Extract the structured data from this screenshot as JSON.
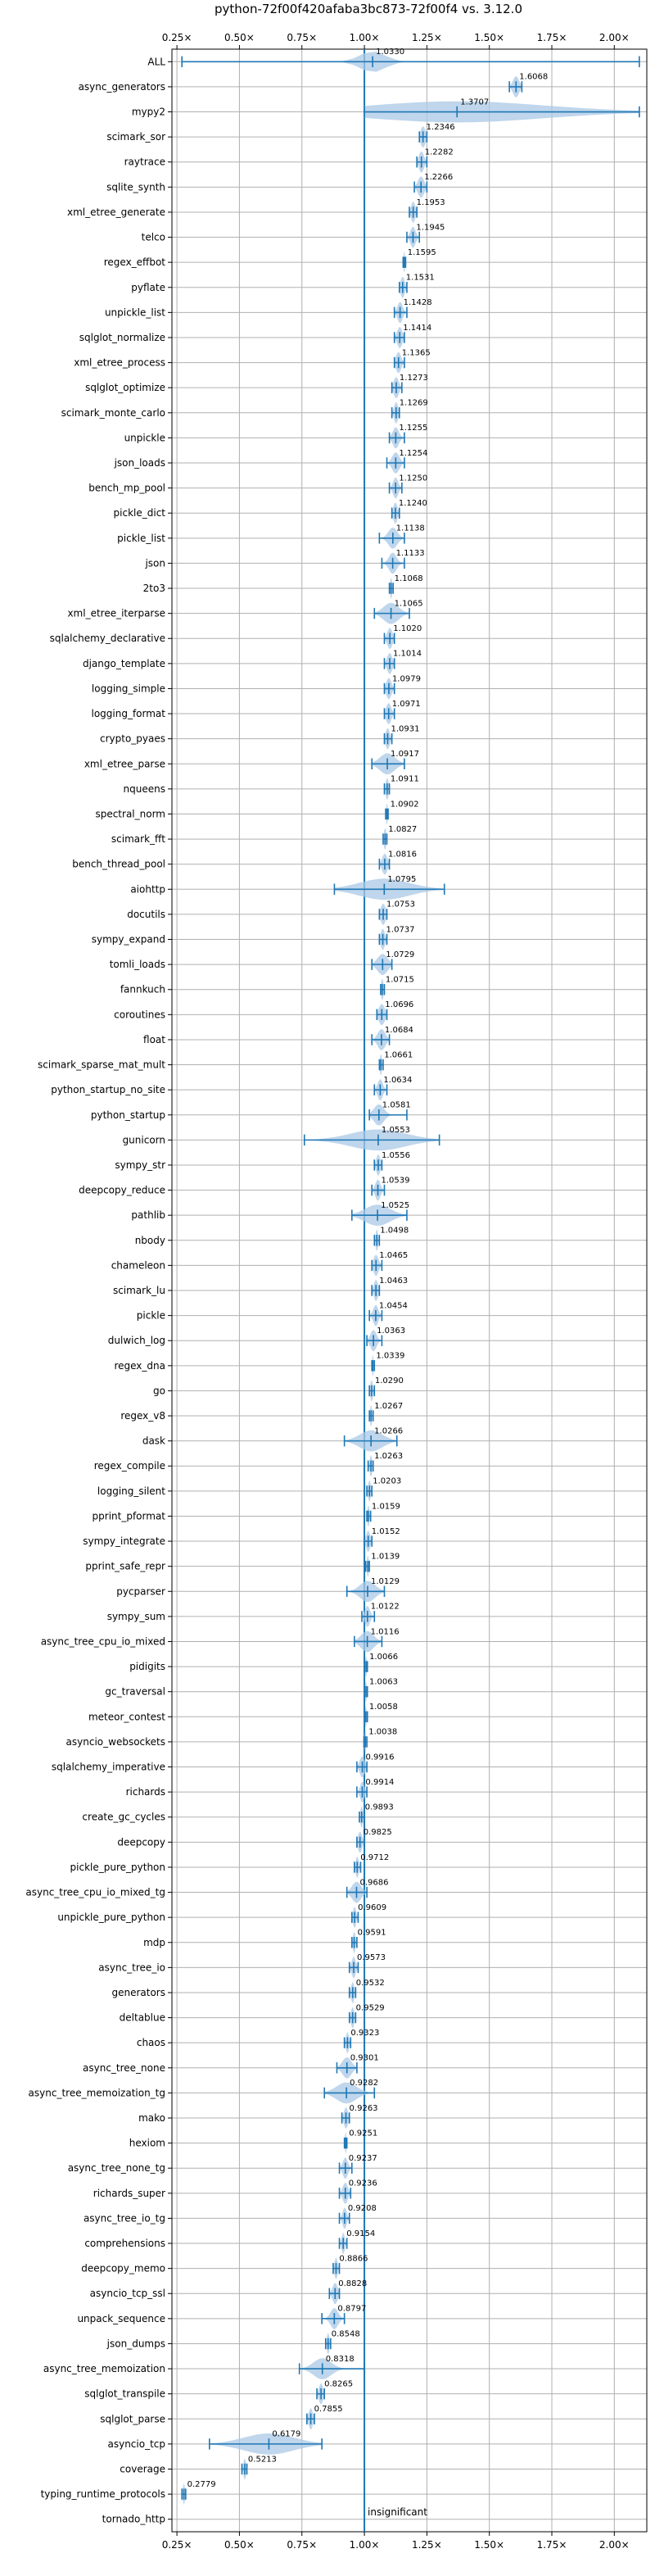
{
  "chart_data": {
    "type": "violin",
    "title": "python-72f00f420afaba3bc873-72f00f4 vs. 3.12.0",
    "xlabel": "",
    "ylabel": "",
    "xlim": [
      0.23,
      2.13
    ],
    "x_ticks": [
      0.25,
      0.5,
      0.75,
      1.0,
      1.25,
      1.5,
      1.75,
      2.0
    ],
    "x_tick_labels": [
      "0.25×",
      "0.50×",
      "0.75×",
      "1.00×",
      "1.25×",
      "1.50×",
      "1.75×",
      "2.00×"
    ],
    "grid": true,
    "reference_line": 1.0,
    "annotation": "insignificant",
    "color": "#1f77b4",
    "fill_color": "#a9c8e6",
    "benchmarks": [
      {
        "name": "ALL",
        "value": 1.033,
        "label": "1.0330",
        "min": 0.27,
        "max": 2.1,
        "spread": 0.05
      },
      {
        "name": "async_generators",
        "value": 1.6068,
        "label": "1.6068",
        "min": 1.58,
        "max": 1.63,
        "spread": 0.012
      },
      {
        "name": "mypy2",
        "value": 1.3707,
        "label": "1.3707",
        "min": 1.0,
        "max": 2.1,
        "spread": 0.35
      },
      {
        "name": "scimark_sor",
        "value": 1.2346,
        "label": "1.2346",
        "min": 1.22,
        "max": 1.25,
        "spread": 0.01
      },
      {
        "name": "raytrace",
        "value": 1.2282,
        "label": "1.2282",
        "min": 1.21,
        "max": 1.25,
        "spread": 0.01
      },
      {
        "name": "sqlite_synth",
        "value": 1.2266,
        "label": "1.2266",
        "min": 1.2,
        "max": 1.25,
        "spread": 0.012
      },
      {
        "name": "xml_etree_generate",
        "value": 1.1953,
        "label": "1.1953",
        "min": 1.18,
        "max": 1.21,
        "spread": 0.008
      },
      {
        "name": "telco",
        "value": 1.1945,
        "label": "1.1945",
        "min": 1.17,
        "max": 1.22,
        "spread": 0.01
      },
      {
        "name": "regex_effbot",
        "value": 1.1595,
        "label": "1.1595",
        "min": 1.155,
        "max": 1.165,
        "spread": 0.003
      },
      {
        "name": "pyflate",
        "value": 1.1531,
        "label": "1.1531",
        "min": 1.14,
        "max": 1.17,
        "spread": 0.008
      },
      {
        "name": "unpickle_list",
        "value": 1.1428,
        "label": "1.1428",
        "min": 1.12,
        "max": 1.17,
        "spread": 0.01
      },
      {
        "name": "sqlglot_normalize",
        "value": 1.1414,
        "label": "1.1414",
        "min": 1.12,
        "max": 1.16,
        "spread": 0.01
      },
      {
        "name": "xml_etree_process",
        "value": 1.1365,
        "label": "1.1365",
        "min": 1.12,
        "max": 1.16,
        "spread": 0.01
      },
      {
        "name": "sqlglot_optimize",
        "value": 1.1273,
        "label": "1.1273",
        "min": 1.11,
        "max": 1.15,
        "spread": 0.01
      },
      {
        "name": "scimark_monte_carlo",
        "value": 1.1269,
        "label": "1.1269",
        "min": 1.11,
        "max": 1.14,
        "spread": 0.008
      },
      {
        "name": "unpickle",
        "value": 1.1255,
        "label": "1.1255",
        "min": 1.1,
        "max": 1.16,
        "spread": 0.012
      },
      {
        "name": "json_loads",
        "value": 1.1254,
        "label": "1.1254",
        "min": 1.09,
        "max": 1.16,
        "spread": 0.014
      },
      {
        "name": "bench_mp_pool",
        "value": 1.125,
        "label": "1.1250",
        "min": 1.1,
        "max": 1.15,
        "spread": 0.01
      },
      {
        "name": "pickle_dict",
        "value": 1.124,
        "label": "1.1240",
        "min": 1.11,
        "max": 1.14,
        "spread": 0.008
      },
      {
        "name": "pickle_list",
        "value": 1.1138,
        "label": "1.1138",
        "min": 1.06,
        "max": 1.16,
        "spread": 0.018
      },
      {
        "name": "json",
        "value": 1.1133,
        "label": "1.1133",
        "min": 1.07,
        "max": 1.16,
        "spread": 0.015
      },
      {
        "name": "2to3",
        "value": 1.1068,
        "label": "1.1068",
        "min": 1.1,
        "max": 1.115,
        "spread": 0.004
      },
      {
        "name": "xml_etree_iterparse",
        "value": 1.1065,
        "label": "1.1065",
        "min": 1.04,
        "max": 1.18,
        "spread": 0.03
      },
      {
        "name": "sqlalchemy_declarative",
        "value": 1.102,
        "label": "1.1020",
        "min": 1.08,
        "max": 1.12,
        "spread": 0.01
      },
      {
        "name": "django_template",
        "value": 1.1014,
        "label": "1.1014",
        "min": 1.08,
        "max": 1.12,
        "spread": 0.01
      },
      {
        "name": "logging_simple",
        "value": 1.0979,
        "label": "1.0979",
        "min": 1.08,
        "max": 1.12,
        "spread": 0.01
      },
      {
        "name": "logging_format",
        "value": 1.0971,
        "label": "1.0971",
        "min": 1.08,
        "max": 1.12,
        "spread": 0.01
      },
      {
        "name": "crypto_pyaes",
        "value": 1.0931,
        "label": "1.0931",
        "min": 1.08,
        "max": 1.11,
        "spread": 0.008
      },
      {
        "name": "xml_etree_parse",
        "value": 1.0917,
        "label": "1.0917",
        "min": 1.03,
        "max": 1.16,
        "spread": 0.03
      },
      {
        "name": "nqueens",
        "value": 1.0911,
        "label": "1.0911",
        "min": 1.08,
        "max": 1.1,
        "spread": 0.006
      },
      {
        "name": "spectral_norm",
        "value": 1.0902,
        "label": "1.0902",
        "min": 1.085,
        "max": 1.095,
        "spread": 0.003
      },
      {
        "name": "scimark_fft",
        "value": 1.0827,
        "label": "1.0827",
        "min": 1.075,
        "max": 1.09,
        "spread": 0.005
      },
      {
        "name": "bench_thread_pool",
        "value": 1.0816,
        "label": "1.0816",
        "min": 1.06,
        "max": 1.1,
        "spread": 0.01
      },
      {
        "name": "aiohttp",
        "value": 1.0795,
        "label": "1.0795",
        "min": 0.88,
        "max": 1.32,
        "spread": 0.1
      },
      {
        "name": "docutils",
        "value": 1.0753,
        "label": "1.0753",
        "min": 1.06,
        "max": 1.09,
        "spread": 0.01
      },
      {
        "name": "sympy_expand",
        "value": 1.0737,
        "label": "1.0737",
        "min": 1.06,
        "max": 1.09,
        "spread": 0.008
      },
      {
        "name": "tomli_loads",
        "value": 1.0729,
        "label": "1.0729",
        "min": 1.03,
        "max": 1.11,
        "spread": 0.02
      },
      {
        "name": "fannkuch",
        "value": 1.0715,
        "label": "1.0715",
        "min": 1.065,
        "max": 1.08,
        "spread": 0.005
      },
      {
        "name": "coroutines",
        "value": 1.0696,
        "label": "1.0696",
        "min": 1.05,
        "max": 1.09,
        "spread": 0.012
      },
      {
        "name": "float",
        "value": 1.0684,
        "label": "1.0684",
        "min": 1.03,
        "max": 1.1,
        "spread": 0.015
      },
      {
        "name": "scimark_sparse_mat_mult",
        "value": 1.0661,
        "label": "1.0661",
        "min": 1.06,
        "max": 1.075,
        "spread": 0.004
      },
      {
        "name": "python_startup_no_site",
        "value": 1.0634,
        "label": "1.0634",
        "min": 1.04,
        "max": 1.09,
        "spread": 0.01
      },
      {
        "name": "python_startup",
        "value": 1.0581,
        "label": "1.0581",
        "min": 1.02,
        "max": 1.17,
        "spread": 0.02
      },
      {
        "name": "gunicorn",
        "value": 1.0553,
        "label": "1.0553",
        "min": 0.76,
        "max": 1.3,
        "spread": 0.11
      },
      {
        "name": "sympy_str",
        "value": 1.0556,
        "label": "1.0556",
        "min": 1.04,
        "max": 1.07,
        "spread": 0.008
      },
      {
        "name": "deepcopy_reduce",
        "value": 1.0539,
        "label": "1.0539",
        "min": 1.03,
        "max": 1.08,
        "spread": 0.01
      },
      {
        "name": "pathlib",
        "value": 1.0525,
        "label": "1.0525",
        "min": 0.95,
        "max": 1.17,
        "spread": 0.05
      },
      {
        "name": "nbody",
        "value": 1.0498,
        "label": "1.0498",
        "min": 1.04,
        "max": 1.06,
        "spread": 0.005
      },
      {
        "name": "chameleon",
        "value": 1.0465,
        "label": "1.0465",
        "min": 1.03,
        "max": 1.07,
        "spread": 0.01
      },
      {
        "name": "scimark_lu",
        "value": 1.0463,
        "label": "1.0463",
        "min": 1.03,
        "max": 1.06,
        "spread": 0.008
      },
      {
        "name": "pickle",
        "value": 1.0454,
        "label": "1.0454",
        "min": 1.02,
        "max": 1.07,
        "spread": 0.01
      },
      {
        "name": "dulwich_log",
        "value": 1.0363,
        "label": "1.0363",
        "min": 1.01,
        "max": 1.07,
        "spread": 0.012
      },
      {
        "name": "regex_dna",
        "value": 1.0339,
        "label": "1.0339",
        "min": 1.03,
        "max": 1.04,
        "spread": 0.003
      },
      {
        "name": "go",
        "value": 1.029,
        "label": "1.0290",
        "min": 1.02,
        "max": 1.04,
        "spread": 0.005
      },
      {
        "name": "regex_v8",
        "value": 1.0267,
        "label": "1.0267",
        "min": 1.02,
        "max": 1.035,
        "spread": 0.004
      },
      {
        "name": "dask",
        "value": 1.0266,
        "label": "1.0266",
        "min": 0.92,
        "max": 1.13,
        "spread": 0.045
      },
      {
        "name": "regex_compile",
        "value": 1.0263,
        "label": "1.0263",
        "min": 1.015,
        "max": 1.035,
        "spread": 0.005
      },
      {
        "name": "logging_silent",
        "value": 1.0203,
        "label": "1.0203",
        "min": 1.01,
        "max": 1.03,
        "spread": 0.005
      },
      {
        "name": "pprint_pformat",
        "value": 1.0159,
        "label": "1.0159",
        "min": 1.01,
        "max": 1.025,
        "spread": 0.004
      },
      {
        "name": "sympy_integrate",
        "value": 1.0152,
        "label": "1.0152",
        "min": 1.0,
        "max": 1.03,
        "spread": 0.008
      },
      {
        "name": "pprint_safe_repr",
        "value": 1.0139,
        "label": "1.0139",
        "min": 1.005,
        "max": 1.02,
        "spread": 0.004
      },
      {
        "name": "pycparser",
        "value": 1.0129,
        "label": "1.0129",
        "min": 0.93,
        "max": 1.08,
        "spread": 0.03
      },
      {
        "name": "sympy_sum",
        "value": 1.0122,
        "label": "1.0122",
        "min": 0.99,
        "max": 1.04,
        "spread": 0.01
      },
      {
        "name": "async_tree_cpu_io_mixed",
        "value": 1.0116,
        "label": "1.0116",
        "min": 0.96,
        "max": 1.07,
        "spread": 0.025
      },
      {
        "name": "pidigits",
        "value": 1.0066,
        "label": "1.0066",
        "min": 1.0,
        "max": 1.012,
        "spread": 0.003
      },
      {
        "name": "gc_traversal",
        "value": 1.0063,
        "label": "1.0063",
        "min": 1.0,
        "max": 1.012,
        "spread": 0.003
      },
      {
        "name": "meteor_contest",
        "value": 1.0058,
        "label": "1.0058",
        "min": 1.0,
        "max": 1.012,
        "spread": 0.003
      },
      {
        "name": "asyncio_websockets",
        "value": 1.0038,
        "label": "1.0038",
        "min": 0.998,
        "max": 1.01,
        "spread": 0.003
      },
      {
        "name": "sqlalchemy_imperative",
        "value": 0.9916,
        "label": "0.9916",
        "min": 0.97,
        "max": 1.01,
        "spread": 0.01
      },
      {
        "name": "richards",
        "value": 0.9914,
        "label": "0.9914",
        "min": 0.97,
        "max": 1.01,
        "spread": 0.008
      },
      {
        "name": "create_gc_cycles",
        "value": 0.9893,
        "label": "0.9893",
        "min": 0.98,
        "max": 1.0,
        "spread": 0.005
      },
      {
        "name": "deepcopy",
        "value": 0.9825,
        "label": "0.9825",
        "min": 0.97,
        "max": 1.0,
        "spread": 0.008
      },
      {
        "name": "pickle_pure_python",
        "value": 0.9712,
        "label": "0.9712",
        "min": 0.96,
        "max": 0.985,
        "spread": 0.006
      },
      {
        "name": "async_tree_cpu_io_mixed_tg",
        "value": 0.9686,
        "label": "0.9686",
        "min": 0.93,
        "max": 1.01,
        "spread": 0.018
      },
      {
        "name": "unpickle_pure_python",
        "value": 0.9609,
        "label": "0.9609",
        "min": 0.95,
        "max": 0.975,
        "spread": 0.006
      },
      {
        "name": "mdp",
        "value": 0.9591,
        "label": "0.9591",
        "min": 0.95,
        "max": 0.97,
        "spread": 0.005
      },
      {
        "name": "async_tree_io",
        "value": 0.9573,
        "label": "0.9573",
        "min": 0.94,
        "max": 0.975,
        "spread": 0.008
      },
      {
        "name": "generators",
        "value": 0.9532,
        "label": "0.9532",
        "min": 0.94,
        "max": 0.965,
        "spread": 0.006
      },
      {
        "name": "deltablue",
        "value": 0.9529,
        "label": "0.9529",
        "min": 0.94,
        "max": 0.965,
        "spread": 0.006
      },
      {
        "name": "chaos",
        "value": 0.9323,
        "label": "0.9323",
        "min": 0.92,
        "max": 0.945,
        "spread": 0.006
      },
      {
        "name": "async_tree_none",
        "value": 0.9301,
        "label": "0.9301",
        "min": 0.89,
        "max": 0.97,
        "spread": 0.018
      },
      {
        "name": "async_tree_memoization_tg",
        "value": 0.9282,
        "label": "0.9282",
        "min": 0.84,
        "max": 1.04,
        "spread": 0.04
      },
      {
        "name": "mako",
        "value": 0.9263,
        "label": "0.9263",
        "min": 0.91,
        "max": 0.94,
        "spread": 0.008
      },
      {
        "name": "hexiom",
        "value": 0.9251,
        "label": "0.9251",
        "min": 0.92,
        "max": 0.93,
        "spread": 0.003
      },
      {
        "name": "async_tree_none_tg",
        "value": 0.9237,
        "label": "0.9237",
        "min": 0.9,
        "max": 0.95,
        "spread": 0.01
      },
      {
        "name": "richards_super",
        "value": 0.9236,
        "label": "0.9236",
        "min": 0.9,
        "max": 0.945,
        "spread": 0.01
      },
      {
        "name": "async_tree_io_tg",
        "value": 0.9208,
        "label": "0.9208",
        "min": 0.9,
        "max": 0.94,
        "spread": 0.008
      },
      {
        "name": "comprehensions",
        "value": 0.9154,
        "label": "0.9154",
        "min": 0.9,
        "max": 0.93,
        "spread": 0.006
      },
      {
        "name": "deepcopy_memo",
        "value": 0.8866,
        "label": "0.8866",
        "min": 0.875,
        "max": 0.9,
        "spread": 0.006
      },
      {
        "name": "asyncio_tcp_ssl",
        "value": 0.8828,
        "label": "0.8828",
        "min": 0.86,
        "max": 0.9,
        "spread": 0.01
      },
      {
        "name": "unpack_sequence",
        "value": 0.8797,
        "label": "0.8797",
        "min": 0.83,
        "max": 0.92,
        "spread": 0.015
      },
      {
        "name": "json_dumps",
        "value": 0.8548,
        "label": "0.8548",
        "min": 0.845,
        "max": 0.865,
        "spread": 0.005
      },
      {
        "name": "async_tree_memoization",
        "value": 0.8318,
        "label": "0.8318",
        "min": 0.74,
        "max": 1.0,
        "spread": 0.035
      },
      {
        "name": "sqlglot_transpile",
        "value": 0.8265,
        "label": "0.8265",
        "min": 0.81,
        "max": 0.84,
        "spread": 0.008
      },
      {
        "name": "sqlglot_parse",
        "value": 0.7855,
        "label": "0.7855",
        "min": 0.77,
        "max": 0.8,
        "spread": 0.008
      },
      {
        "name": "asyncio_tcp",
        "value": 0.6179,
        "label": "0.6179",
        "min": 0.38,
        "max": 0.83,
        "spread": 0.1
      },
      {
        "name": "coverage",
        "value": 0.5213,
        "label": "0.5213",
        "min": 0.51,
        "max": 0.53,
        "spread": 0.005
      },
      {
        "name": "typing_runtime_protocols",
        "value": 0.2779,
        "label": "0.2779",
        "min": 0.27,
        "max": 0.285,
        "spread": 0.004
      },
      {
        "name": "tornado_http",
        "value": null,
        "label": "",
        "min": null,
        "max": null,
        "spread": 0,
        "note": "insignificant"
      }
    ]
  }
}
